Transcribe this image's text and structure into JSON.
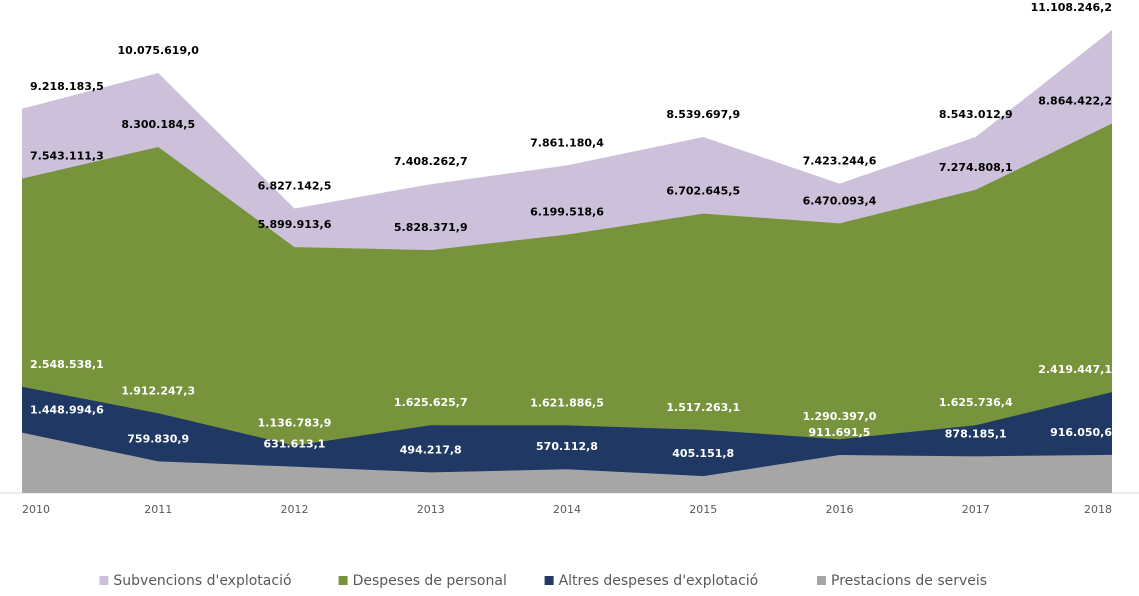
{
  "chart_data": {
    "type": "area",
    "categories": [
      "2010",
      "2011",
      "2012",
      "2013",
      "2014",
      "2015",
      "2016",
      "2017",
      "2018"
    ],
    "series": [
      {
        "name": "Subvencions d'explotació",
        "color": "#ccc0da",
        "values": [
          9218183.5,
          10075619.0,
          6827142.5,
          7408262.7,
          7861180.4,
          8539697.9,
          7423244.6,
          8543012.9,
          11108246.2
        ],
        "value_labels": [
          "9.218.183,5",
          "10.075.619,0",
          "6.827.142,5",
          "7.408.262,7",
          "7.861.180,4",
          "8.539.697,9",
          "7.423.244,6",
          "8.543.012,9",
          "11.108.246,2"
        ]
      },
      {
        "name": "Despeses de personal",
        "color": "#77933c",
        "values": [
          7543111.3,
          8300184.5,
          5899913.6,
          5828371.9,
          6199518.6,
          6702645.5,
          6470093.4,
          7274808.1,
          8864422.2
        ],
        "value_labels": [
          "7.543.111,3",
          "8.300.184,5",
          "5.899.913,6",
          "5.828.371,9",
          "6.199.518,6",
          "6.702.645,5",
          "6.470.093,4",
          "7.274.808,1",
          "8.864.422,2"
        ]
      },
      {
        "name": "Altres despeses d'explotació",
        "color": "#1f3864",
        "values": [
          2548538.1,
          1912247.3,
          1136783.9,
          1625625.7,
          1621886.5,
          1517263.1,
          1290397.0,
          1625736.4,
          2419447.1
        ],
        "value_labels": [
          "2.548.538,1",
          "1.912.247,3",
          "1.136.783,9",
          "1.625.625,7",
          "1.621.886,5",
          "1.517.263,1",
          "1.290.397,0",
          "1.625.736,4",
          "2.419.447,1"
        ]
      },
      {
        "name": "Prestacions de serveis",
        "color": "#a6a6a6",
        "values": [
          1448994.6,
          759830.9,
          631613.1,
          494217.8,
          570112.8,
          405151.8,
          911691.5,
          878185.1,
          916050.6
        ],
        "value_labels": [
          "1.448.994,6",
          "759.830,9",
          "631.613,1",
          "494.217,8",
          "570.112,8",
          "405.151,8",
          "911.691,5",
          "878.185,1",
          "916.050,6"
        ]
      }
    ]
  }
}
